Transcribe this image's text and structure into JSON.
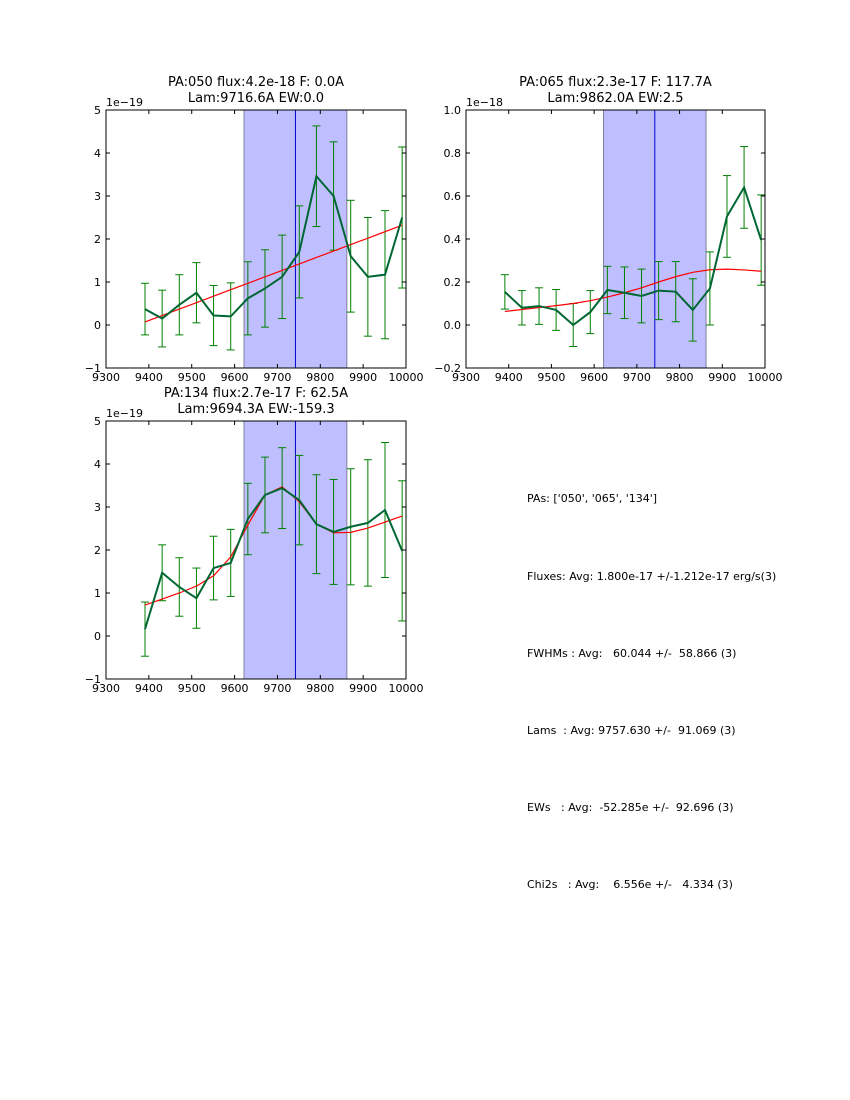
{
  "chart_data": [
    {
      "type": "line",
      "title": "PA:050 flux:4.2e-18 F: 0.0A\nLam:9716.6A EW:0.0",
      "title_lines": [
        "PA:050 flux:4.2e-18 F: 0.0A",
        "Lam:9716.6A EW:0.0"
      ],
      "multiplier_label": "1e−19",
      "xlabel": "",
      "ylabel": "",
      "xlim": [
        9300,
        10000
      ],
      "ylim": [
        -1,
        5
      ],
      "xticks": [
        9300,
        9400,
        9500,
        9600,
        9700,
        9800,
        9900,
        10000
      ],
      "xtick_labels": [
        "9300",
        "9400",
        "9500",
        "9600",
        "9700",
        "9800",
        "9900",
        "10000"
      ],
      "yticks": [
        -1,
        0,
        1,
        2,
        3,
        4,
        5
      ],
      "ytick_labels": [
        "−1",
        "0",
        "1",
        "2",
        "3",
        "4",
        "5"
      ],
      "shaded_span": [
        9622,
        9862
      ],
      "vline": 9742,
      "grid": false,
      "x": [
        9391,
        9431,
        9471,
        9511,
        9551,
        9591,
        9631,
        9671,
        9711,
        9751,
        9791,
        9831,
        9871,
        9911,
        9951,
        9991
      ],
      "series": [
        {
          "name": "data",
          "color": "#006633",
          "values": [
            0.37,
            0.15,
            0.47,
            0.75,
            0.22,
            0.2,
            0.62,
            0.85,
            1.12,
            1.7,
            3.46,
            3.0,
            1.6,
            1.12,
            1.17,
            2.5
          ],
          "errors": [
            0.6,
            0.66,
            0.7,
            0.7,
            0.7,
            0.78,
            0.85,
            0.9,
            0.97,
            1.07,
            1.17,
            1.26,
            1.3,
            1.38,
            1.49,
            1.64
          ]
        },
        {
          "name": "fit",
          "color": "#ff0000",
          "values": [
            0.07,
            0.22,
            0.37,
            0.52,
            0.67,
            0.82,
            0.97,
            1.12,
            1.27,
            1.42,
            1.57,
            1.72,
            1.87,
            2.02,
            2.17,
            2.32
          ]
        }
      ]
    },
    {
      "type": "line",
      "title_lines": [
        "PA:065 flux:2.3e-17 F: 117.7A",
        "Lam:9862.0A EW:2.5"
      ],
      "multiplier_label": "1e−18",
      "xlabel": "",
      "ylabel": "",
      "xlim": [
        9300,
        10000
      ],
      "ylim": [
        -0.2,
        1.0
      ],
      "xticks": [
        9300,
        9400,
        9500,
        9600,
        9700,
        9800,
        9900,
        10000
      ],
      "xtick_labels": [
        "9300",
        "9400",
        "9500",
        "9600",
        "9700",
        "9800",
        "9900",
        "10000"
      ],
      "yticks": [
        -0.2,
        0.0,
        0.2,
        0.4,
        0.6,
        0.8,
        1.0
      ],
      "ytick_labels": [
        "−0.2",
        "0.0",
        "0.2",
        "0.4",
        "0.6",
        "0.8",
        "1.0"
      ],
      "shaded_span": [
        9622,
        9862
      ],
      "vline": 9742,
      "grid": false,
      "x": [
        9391,
        9431,
        9471,
        9511,
        9551,
        9591,
        9631,
        9671,
        9711,
        9751,
        9791,
        9831,
        9871,
        9911,
        9951,
        9991
      ],
      "series": [
        {
          "name": "data",
          "color": "#006633",
          "values": [
            0.154,
            0.08,
            0.088,
            0.07,
            0.0,
            0.06,
            0.163,
            0.15,
            0.135,
            0.16,
            0.155,
            0.07,
            0.17,
            0.505,
            0.64,
            0.395
          ],
          "errors": [
            0.08,
            0.08,
            0.085,
            0.095,
            0.1,
            0.1,
            0.11,
            0.12,
            0.125,
            0.135,
            0.14,
            0.145,
            0.17,
            0.19,
            0.19,
            0.21
          ]
        },
        {
          "name": "fit",
          "color": "#ff0000",
          "values": [
            0.063,
            0.072,
            0.081,
            0.09,
            0.1,
            0.113,
            0.13,
            0.15,
            0.173,
            0.2,
            0.225,
            0.245,
            0.257,
            0.26,
            0.256,
            0.25
          ]
        }
      ]
    },
    {
      "type": "line",
      "title_lines": [
        "PA:134 flux:2.7e-17 F: 62.5A",
        "Lam:9694.3A EW:-159.3"
      ],
      "multiplier_label": "1e−19",
      "xlabel": "",
      "ylabel": "",
      "xlim": [
        9300,
        10000
      ],
      "ylim": [
        -1,
        5
      ],
      "xticks": [
        9300,
        9400,
        9500,
        9600,
        9700,
        9800,
        9900,
        10000
      ],
      "xtick_labels": [
        "9300",
        "9400",
        "9500",
        "9600",
        "9700",
        "9800",
        "9900",
        "10000"
      ],
      "yticks": [
        -1,
        0,
        1,
        2,
        3,
        4,
        5
      ],
      "ytick_labels": [
        "−1",
        "0",
        "1",
        "2",
        "3",
        "4",
        "5"
      ],
      "shaded_span": [
        9622,
        9862
      ],
      "vline": 9742,
      "grid": false,
      "x": [
        9391,
        9431,
        9471,
        9511,
        9551,
        9591,
        9631,
        9671,
        9711,
        9751,
        9791,
        9831,
        9871,
        9911,
        9951,
        9991
      ],
      "series": [
        {
          "name": "data",
          "color": "#006633",
          "values": [
            0.16,
            1.47,
            1.14,
            0.88,
            1.58,
            1.7,
            2.72,
            3.28,
            3.44,
            3.16,
            2.6,
            2.42,
            2.54,
            2.63,
            2.93,
            1.98
          ],
          "errors": [
            0.63,
            0.65,
            0.68,
            0.7,
            0.74,
            0.78,
            0.83,
            0.88,
            0.94,
            1.04,
            1.15,
            1.22,
            1.35,
            1.47,
            1.57,
            1.63
          ]
        },
        {
          "name": "fit",
          "color": "#ff0000",
          "values": [
            0.72,
            0.86,
            1.0,
            1.16,
            1.4,
            1.84,
            2.58,
            3.28,
            3.47,
            3.12,
            2.6,
            2.4,
            2.41,
            2.51,
            2.65,
            2.79
          ]
        }
      ]
    }
  ],
  "summary": {
    "pas": "PAs: ['050', '065', '134']",
    "fluxes": "Fluxes: Avg: 1.800e-17 +/-1.212e-17 erg/s(3)",
    "fwhms": "FWHMs : Avg:   60.044 +/-  58.866 (3)",
    "lams": "Lams  : Avg: 9757.630 +/-  91.069 (3)",
    "ews": "EWs   : Avg:  -52.285e +/-  92.696 (3)",
    "chi2s": "Chi2s   : Avg:    6.556e +/-   4.334 (3)"
  },
  "colors": {
    "data_line": "#006633",
    "errorbar": "#008000",
    "fit_line": "#ff0000",
    "shade": "#bfbfff",
    "vline": "#0000cc"
  }
}
